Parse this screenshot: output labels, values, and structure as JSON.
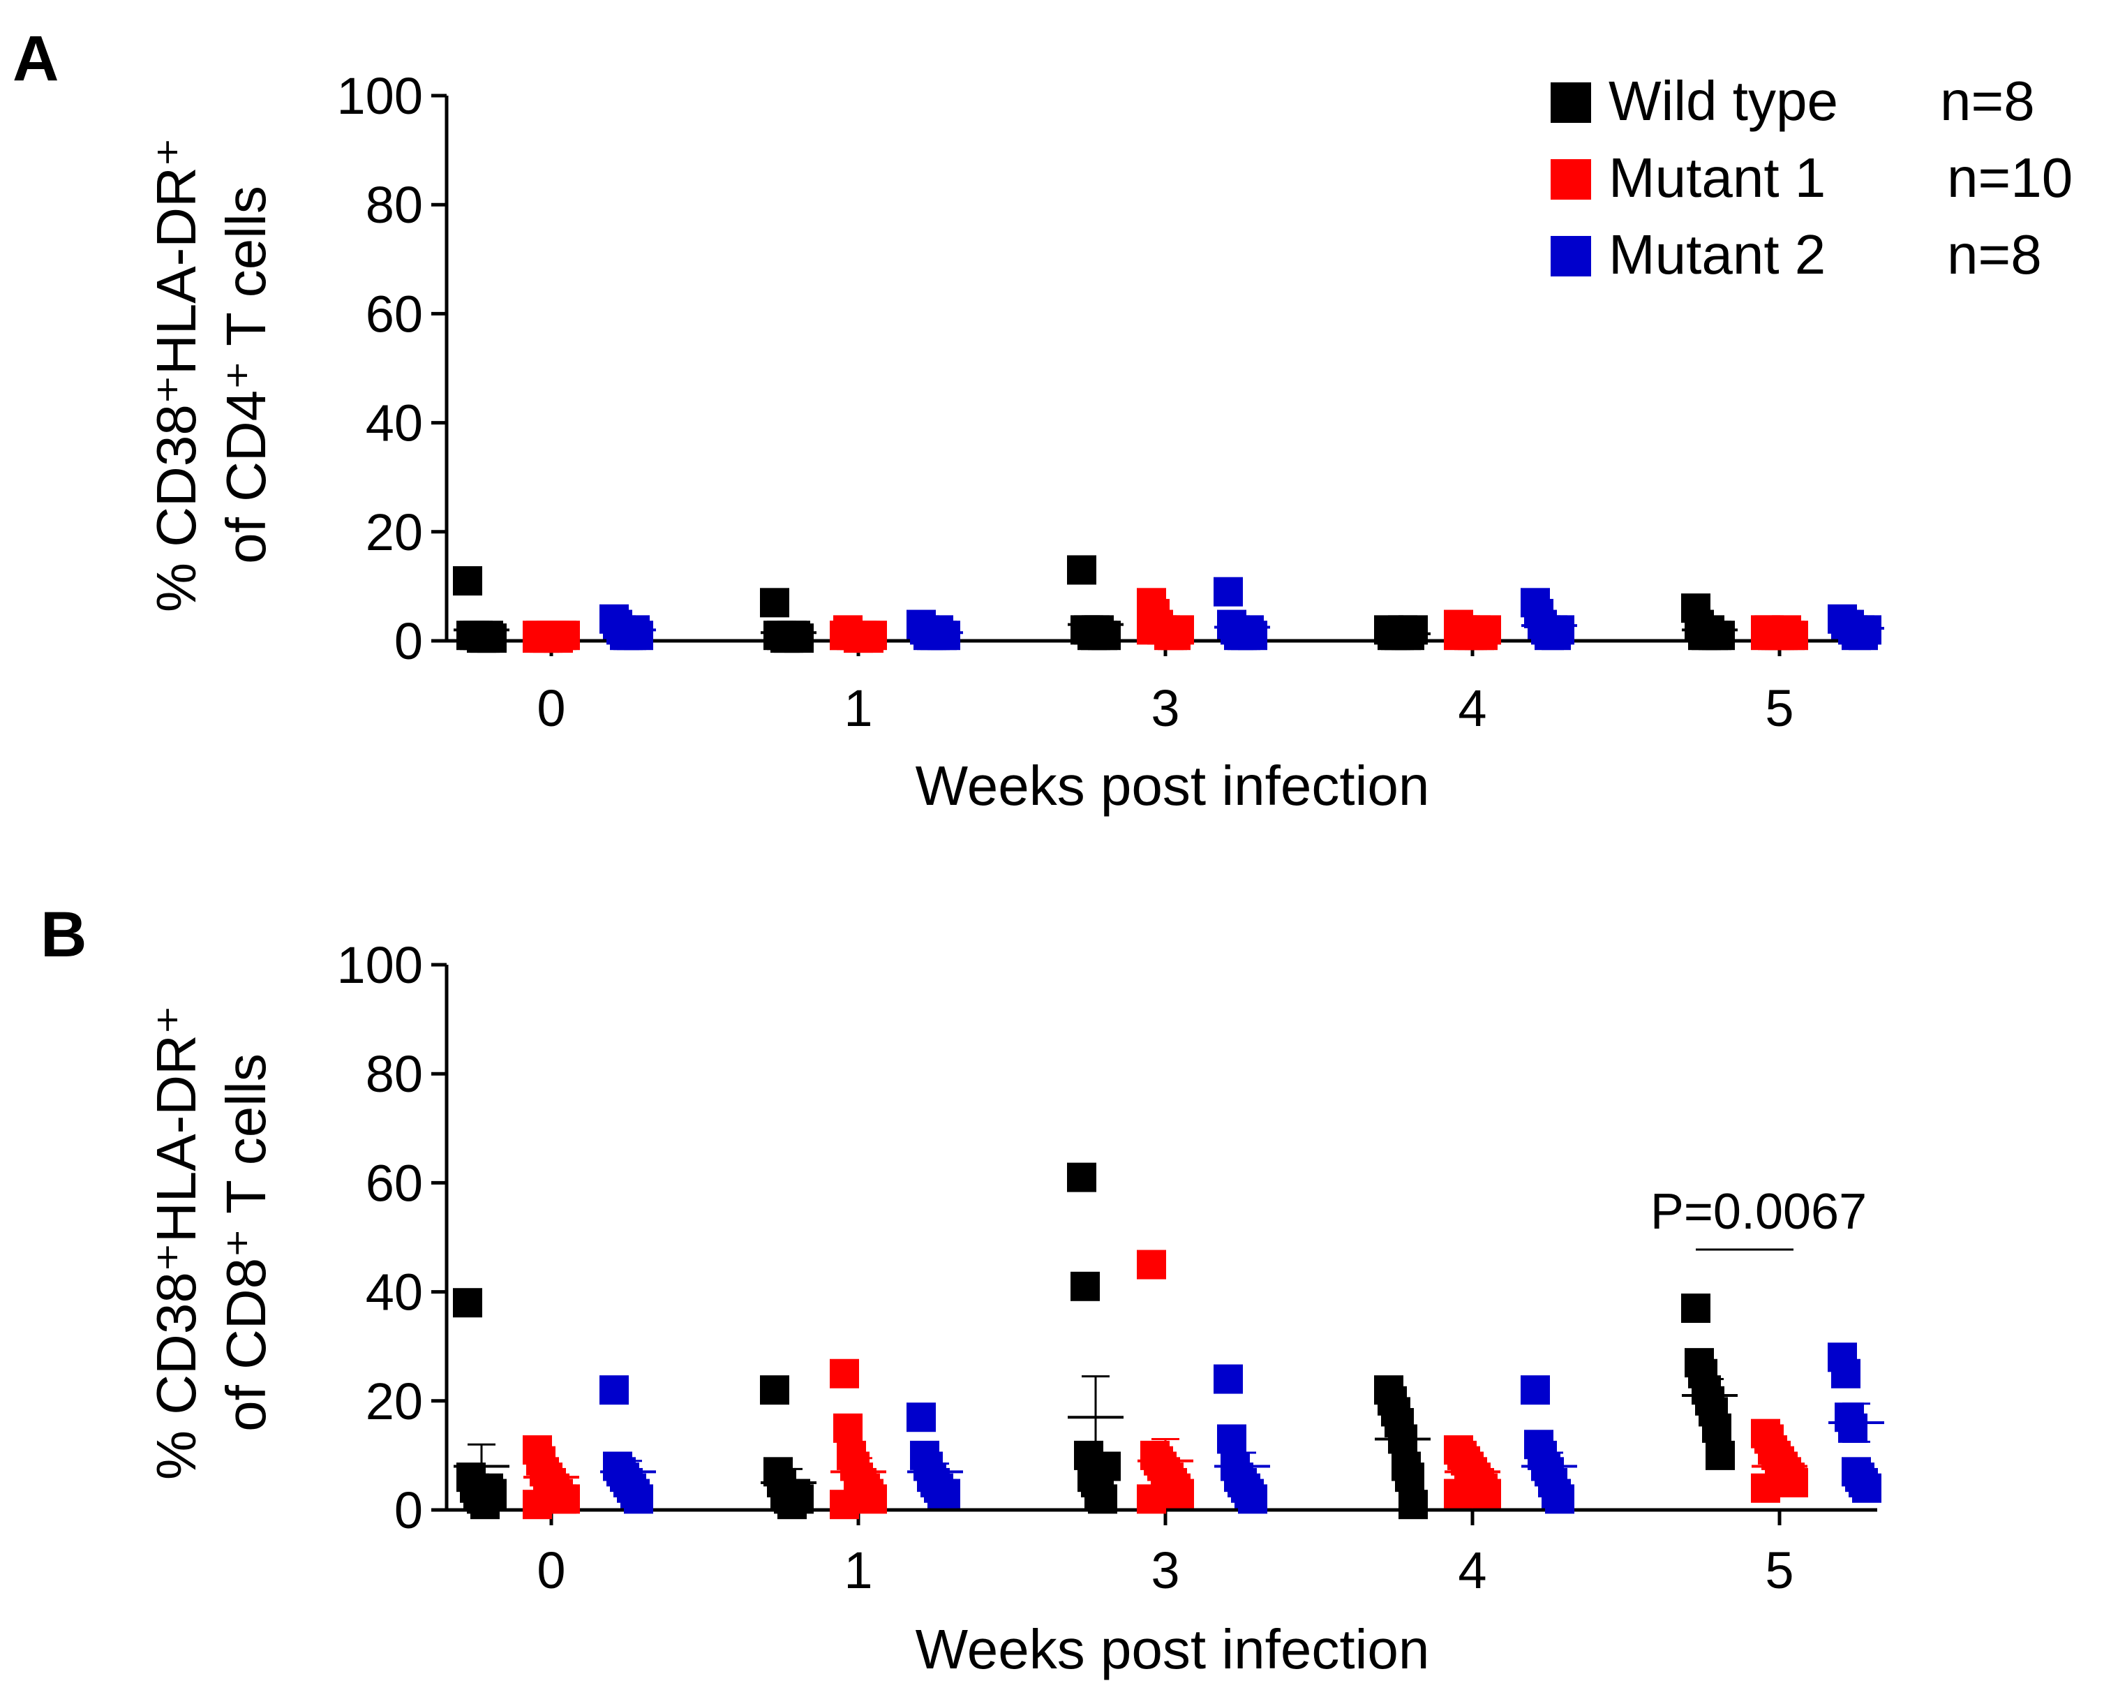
{
  "legend": [
    {
      "name": "Wild type",
      "n_label": "n=8",
      "color": "#000000"
    },
    {
      "name": "Mutant 1",
      "n_label": "n=10",
      "color": "#ff0000"
    },
    {
      "name": "Mutant 2",
      "n_label": "n=8",
      "color": "#0000cc"
    }
  ],
  "chart_data": [
    {
      "type": "scatter",
      "panel_label": "A",
      "title": "",
      "xlabel": "Weeks post infection",
      "ylabel_line1": "% CD38⁺HLA-DR⁺",
      "ylabel_line2": "of CD4⁺ T cells",
      "categories": [
        "0",
        "1",
        "3",
        "4",
        "5"
      ],
      "ylim": [
        0,
        100
      ],
      "yticks": [
        "0",
        "20",
        "40",
        "60",
        "80",
        "100"
      ],
      "series": [
        {
          "name": "Wild type",
          "color": "#000000",
          "points": [
            [
              11,
              1,
              1,
              1,
              0.5,
              0.5,
              1,
              0.5
            ],
            [
              7,
              1,
              1,
              0.5,
              0.5,
              1,
              1,
              0.5
            ],
            [
              13,
              2,
              2,
              1,
              1,
              2,
              1,
              1
            ],
            [
              2,
              1,
              1,
              1,
              2,
              1,
              1,
              2
            ],
            [
              6,
              3,
              1,
              1,
              2,
              1,
              1,
              1
            ]
          ],
          "means": [
            2,
            1.5,
            3,
            1.3,
            2
          ],
          "sems": [
            1,
            0.7,
            1.5,
            0.2,
            0.6
          ]
        },
        {
          "name": "Mutant 1",
          "color": "#ff0000",
          "points": [
            [
              1,
              1,
              0.5,
              0.5,
              1,
              1,
              0.5,
              1,
              1,
              0.5
            ],
            [
              1,
              2,
              1,
              1,
              0.5,
              1,
              1,
              0.5,
              1,
              1
            ],
            [
              7,
              5,
              3,
              2,
              2,
              1,
              1,
              1,
              2,
              2
            ],
            [
              3,
              2,
              2,
              1,
              1,
              2,
              1,
              1,
              2,
              1
            ],
            [
              2,
              2,
              1,
              1,
              1,
              1,
              2,
              1,
              1,
              1
            ]
          ],
          "means": [
            0.8,
            1,
            2.5,
            1.5,
            1.3
          ],
          "sems": [
            0.2,
            0.2,
            0.6,
            0.2,
            0.2
          ]
        },
        {
          "name": "Mutant 2",
          "color": "#0000cc",
          "points": [
            [
              4,
              3,
              2,
              1,
              1,
              1,
              2,
              1
            ],
            [
              3,
              2,
              1,
              1,
              1,
              2,
              1,
              1
            ],
            [
              9,
              3,
              2,
              1,
              1,
              1,
              2,
              1
            ],
            [
              7,
              5,
              3,
              2,
              1,
              2,
              1,
              2
            ],
            [
              4,
              3,
              3,
              2,
              1,
              2,
              1,
              2
            ]
          ],
          "means": [
            2,
            1.5,
            2.5,
            2.8,
            2.3
          ],
          "sems": [
            0.5,
            0.3,
            1,
            0.8,
            0.4
          ]
        }
      ]
    },
    {
      "type": "scatter",
      "panel_label": "B",
      "title": "",
      "xlabel": "Weeks post infection",
      "ylabel_line1": "% CD38⁺HLA-DR⁺",
      "ylabel_line2": "of CD8⁺ T cells",
      "categories": [
        "0",
        "1",
        "3",
        "4",
        "5"
      ],
      "ylim": [
        0,
        100
      ],
      "yticks": [
        "0",
        "20",
        "40",
        "60",
        "80",
        "100"
      ],
      "series": [
        {
          "name": "Wild type",
          "color": "#000000",
          "points": [
            [
              38,
              6,
              4,
              3,
              2,
              1,
              4,
              3
            ],
            [
              22,
              7,
              5,
              3,
              2,
              1,
              3,
              2
            ],
            [
              61,
              41,
              10,
              6,
              5,
              3,
              2,
              8
            ],
            [
              22,
              20,
              18,
              16,
              13,
              8,
              6,
              1
            ],
            [
              37,
              27,
              25,
              22,
              20,
              18,
              15,
              10
            ]
          ],
          "means": [
            8,
            5,
            17,
            13,
            21
          ],
          "sems": [
            4,
            2.5,
            7.5,
            2.5,
            3
          ]
        },
        {
          "name": "Mutant 1",
          "color": "#ff0000",
          "points": [
            [
              11,
              9,
              7,
              6,
              5,
              4,
              3,
              2,
              2,
              1
            ],
            [
              25,
              15,
              10,
              8,
              6,
              5,
              4,
              3,
              2,
              1
            ],
            [
              45,
              10,
              9,
              8,
              7,
              6,
              5,
              4,
              3,
              2
            ],
            [
              11,
              10,
              9,
              8,
              7,
              6,
              5,
              4,
              3,
              3
            ],
            [
              14,
              13,
              11,
              10,
              9,
              8,
              7,
              6,
              5,
              4
            ]
          ],
          "means": [
            6,
            7,
            9,
            7,
            8
          ],
          "sems": [
            1,
            2.5,
            4,
            1,
            1
          ]
        },
        {
          "name": "Mutant 2",
          "color": "#0000cc",
          "points": [
            [
              22,
              8,
              7,
              6,
              5,
              4,
              3,
              2
            ],
            [
              17,
              10,
              8,
              6,
              5,
              4,
              3,
              3
            ],
            [
              24,
              13,
              8,
              6,
              5,
              4,
              3,
              2
            ],
            [
              22,
              12,
              10,
              8,
              7,
              5,
              3,
              2
            ],
            [
              28,
              25,
              17,
              15,
              7,
              6,
              5,
              4
            ]
          ],
          "means": [
            7,
            7,
            8,
            8,
            16
          ],
          "sems": [
            2,
            1.5,
            2.5,
            2.5,
            3.5
          ]
        }
      ],
      "annotation": {
        "text": "P=0.0067",
        "week": "5",
        "groups": [
          "Wild type",
          "Mutant 1"
        ]
      }
    }
  ]
}
